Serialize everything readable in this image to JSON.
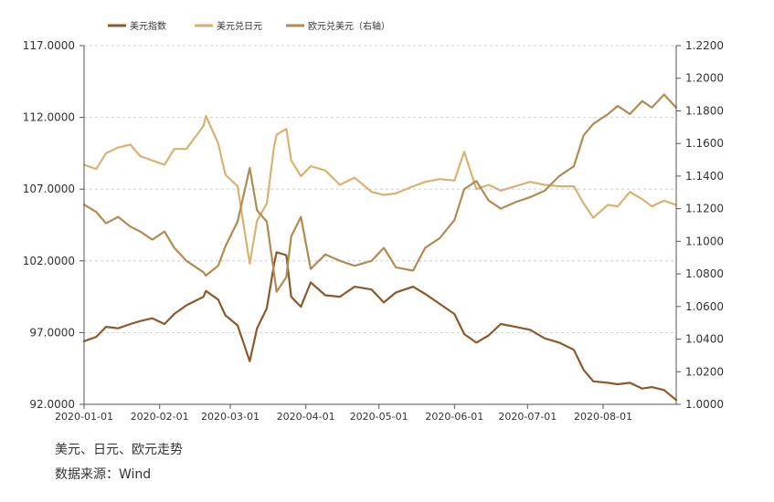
{
  "caption": {
    "title": "美元、日元、欧元走势",
    "source": "数据来源：Wind"
  },
  "chart_data": {
    "type": "line",
    "legend_position": "top",
    "grid": "horizontal-dashed",
    "x_ticks": [
      "2020-01-01",
      "2020-02-01",
      "2020-03-01",
      "2020-04-01",
      "2020-05-01",
      "2020-06-01",
      "2020-07-01",
      "2020-08-01"
    ],
    "x_range": [
      "2020-01-01",
      "2020-08-31"
    ],
    "y_left": {
      "min": 92,
      "max": 117,
      "ticks": [
        "92.0000",
        "97.0000",
        "102.0000",
        "107.0000",
        "112.0000",
        "117.0000"
      ]
    },
    "y_right": {
      "min": 1.0,
      "max": 1.22,
      "ticks": [
        "1.0000",
        "1.0200",
        "1.0400",
        "1.0600",
        "1.0800",
        "1.1000",
        "1.1200",
        "1.1400",
        "1.1600",
        "1.1800",
        "1.2000",
        "1.2200"
      ]
    },
    "series": [
      {
        "name": "美元指数",
        "axis": "left",
        "color": "#8b5a2b",
        "points": [
          [
            "2020-01-01",
            96.4
          ],
          [
            "2020-01-06",
            96.7
          ],
          [
            "2020-01-10",
            97.4
          ],
          [
            "2020-01-15",
            97.3
          ],
          [
            "2020-01-20",
            97.6
          ],
          [
            "2020-01-24",
            97.8
          ],
          [
            "2020-01-29",
            98.0
          ],
          [
            "2020-02-03",
            97.6
          ],
          [
            "2020-02-07",
            98.3
          ],
          [
            "2020-02-12",
            98.9
          ],
          [
            "2020-02-19",
            99.5
          ],
          [
            "2020-02-20",
            99.9
          ],
          [
            "2020-02-25",
            99.3
          ],
          [
            "2020-02-28",
            98.2
          ],
          [
            "2020-03-04",
            97.5
          ],
          [
            "2020-03-09",
            95.0
          ],
          [
            "2020-03-12",
            97.3
          ],
          [
            "2020-03-16",
            98.7
          ],
          [
            "2020-03-19",
            101.8
          ],
          [
            "2020-03-20",
            102.6
          ],
          [
            "2020-03-24",
            102.4
          ],
          [
            "2020-03-26",
            99.5
          ],
          [
            "2020-03-30",
            98.8
          ],
          [
            "2020-04-03",
            100.5
          ],
          [
            "2020-04-09",
            99.6
          ],
          [
            "2020-04-15",
            99.5
          ],
          [
            "2020-04-21",
            100.2
          ],
          [
            "2020-04-28",
            100.0
          ],
          [
            "2020-05-03",
            99.1
          ],
          [
            "2020-05-08",
            99.8
          ],
          [
            "2020-05-15",
            100.2
          ],
          [
            "2020-05-20",
            99.7
          ],
          [
            "2020-05-26",
            99.0
          ],
          [
            "2020-06-01",
            98.3
          ],
          [
            "2020-06-05",
            96.9
          ],
          [
            "2020-06-10",
            96.3
          ],
          [
            "2020-06-15",
            96.8
          ],
          [
            "2020-06-20",
            97.6
          ],
          [
            "2020-06-26",
            97.4
          ],
          [
            "2020-07-02",
            97.2
          ],
          [
            "2020-07-08",
            96.6
          ],
          [
            "2020-07-14",
            96.3
          ],
          [
            "2020-07-20",
            95.8
          ],
          [
            "2020-07-24",
            94.4
          ],
          [
            "2020-07-28",
            93.6
          ],
          [
            "2020-08-03",
            93.5
          ],
          [
            "2020-08-07",
            93.4
          ],
          [
            "2020-08-12",
            93.5
          ],
          [
            "2020-08-17",
            93.1
          ],
          [
            "2020-08-21",
            93.2
          ],
          [
            "2020-08-26",
            93.0
          ],
          [
            "2020-08-31",
            92.3
          ]
        ]
      },
      {
        "name": "美元兑日元",
        "axis": "left",
        "color": "#d9b273",
        "points": [
          [
            "2020-01-01",
            108.7
          ],
          [
            "2020-01-06",
            108.4
          ],
          [
            "2020-01-10",
            109.5
          ],
          [
            "2020-01-15",
            109.9
          ],
          [
            "2020-01-20",
            110.1
          ],
          [
            "2020-01-24",
            109.3
          ],
          [
            "2020-01-29",
            109.0
          ],
          [
            "2020-02-03",
            108.7
          ],
          [
            "2020-02-07",
            109.8
          ],
          [
            "2020-02-12",
            109.8
          ],
          [
            "2020-02-19",
            111.4
          ],
          [
            "2020-02-20",
            112.1
          ],
          [
            "2020-02-25",
            110.2
          ],
          [
            "2020-02-28",
            108.0
          ],
          [
            "2020-03-04",
            107.2
          ],
          [
            "2020-03-09",
            101.8
          ],
          [
            "2020-03-12",
            104.8
          ],
          [
            "2020-03-16",
            106.0
          ],
          [
            "2020-03-19",
            110.0
          ],
          [
            "2020-03-20",
            110.8
          ],
          [
            "2020-03-24",
            111.2
          ],
          [
            "2020-03-26",
            109.0
          ],
          [
            "2020-03-30",
            107.9
          ],
          [
            "2020-04-03",
            108.6
          ],
          [
            "2020-04-09",
            108.3
          ],
          [
            "2020-04-15",
            107.3
          ],
          [
            "2020-04-21",
            107.8
          ],
          [
            "2020-04-28",
            106.8
          ],
          [
            "2020-05-03",
            106.6
          ],
          [
            "2020-05-08",
            106.7
          ],
          [
            "2020-05-15",
            107.2
          ],
          [
            "2020-05-20",
            107.5
          ],
          [
            "2020-05-26",
            107.7
          ],
          [
            "2020-06-01",
            107.6
          ],
          [
            "2020-06-05",
            109.6
          ],
          [
            "2020-06-10",
            107.0
          ],
          [
            "2020-06-15",
            107.3
          ],
          [
            "2020-06-20",
            106.9
          ],
          [
            "2020-06-26",
            107.2
          ],
          [
            "2020-07-02",
            107.5
          ],
          [
            "2020-07-08",
            107.3
          ],
          [
            "2020-07-14",
            107.2
          ],
          [
            "2020-07-20",
            107.2
          ],
          [
            "2020-07-24",
            106.0
          ],
          [
            "2020-07-28",
            105.0
          ],
          [
            "2020-08-03",
            105.9
          ],
          [
            "2020-08-07",
            105.8
          ],
          [
            "2020-08-12",
            106.8
          ],
          [
            "2020-08-17",
            106.3
          ],
          [
            "2020-08-21",
            105.8
          ],
          [
            "2020-08-26",
            106.2
          ],
          [
            "2020-08-31",
            105.9
          ]
        ]
      },
      {
        "name": "欧元兑美元（右轴）",
        "axis": "right",
        "color": "#b08c52",
        "points": [
          [
            "2020-01-01",
            1.1225
          ],
          [
            "2020-01-06",
            1.118
          ],
          [
            "2020-01-10",
            1.111
          ],
          [
            "2020-01-15",
            1.115
          ],
          [
            "2020-01-20",
            1.109
          ],
          [
            "2020-01-24",
            1.106
          ],
          [
            "2020-01-29",
            1.101
          ],
          [
            "2020-02-03",
            1.106
          ],
          [
            "2020-02-07",
            1.096
          ],
          [
            "2020-02-12",
            1.088
          ],
          [
            "2020-02-19",
            1.081
          ],
          [
            "2020-02-20",
            1.079
          ],
          [
            "2020-02-25",
            1.085
          ],
          [
            "2020-02-28",
            1.097
          ],
          [
            "2020-03-04",
            1.112
          ],
          [
            "2020-03-09",
            1.145
          ],
          [
            "2020-03-12",
            1.119
          ],
          [
            "2020-03-16",
            1.112
          ],
          [
            "2020-03-19",
            1.08
          ],
          [
            "2020-03-20",
            1.069
          ],
          [
            "2020-03-24",
            1.078
          ],
          [
            "2020-03-26",
            1.103
          ],
          [
            "2020-03-30",
            1.115
          ],
          [
            "2020-04-03",
            1.083
          ],
          [
            "2020-04-09",
            1.092
          ],
          [
            "2020-04-15",
            1.088
          ],
          [
            "2020-04-21",
            1.085
          ],
          [
            "2020-04-28",
            1.088
          ],
          [
            "2020-05-03",
            1.096
          ],
          [
            "2020-05-08",
            1.084
          ],
          [
            "2020-05-15",
            1.082
          ],
          [
            "2020-05-20",
            1.096
          ],
          [
            "2020-05-26",
            1.102
          ],
          [
            "2020-06-01",
            1.113
          ],
          [
            "2020-06-05",
            1.132
          ],
          [
            "2020-06-10",
            1.137
          ],
          [
            "2020-06-15",
            1.125
          ],
          [
            "2020-06-20",
            1.12
          ],
          [
            "2020-06-26",
            1.124
          ],
          [
            "2020-07-02",
            1.127
          ],
          [
            "2020-07-08",
            1.131
          ],
          [
            "2020-07-14",
            1.14
          ],
          [
            "2020-07-20",
            1.146
          ],
          [
            "2020-07-24",
            1.165
          ],
          [
            "2020-07-28",
            1.172
          ],
          [
            "2020-08-03",
            1.178
          ],
          [
            "2020-08-07",
            1.183
          ],
          [
            "2020-08-12",
            1.178
          ],
          [
            "2020-08-17",
            1.186
          ],
          [
            "2020-08-21",
            1.182
          ],
          [
            "2020-08-26",
            1.19
          ],
          [
            "2020-08-31",
            1.182
          ]
        ]
      }
    ]
  }
}
